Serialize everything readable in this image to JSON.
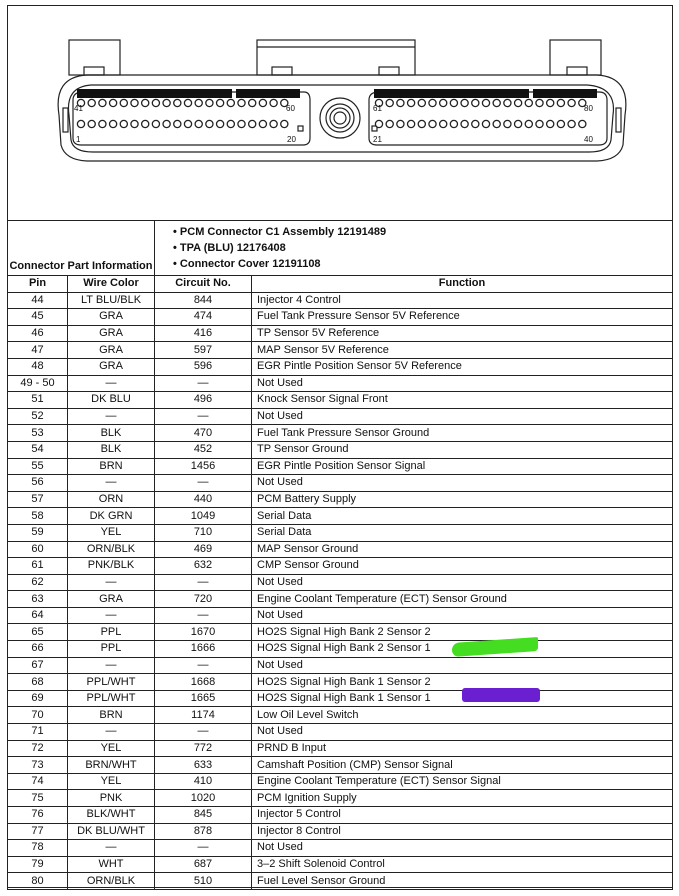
{
  "diagram": {
    "pin_labels": {
      "top_left_start": "41",
      "top_left_end": "60",
      "bottom_left_start": "1",
      "bottom_left_end": "20",
      "top_right_start": "61",
      "top_right_end": "80",
      "bottom_right_start": "21",
      "bottom_right_end": "40"
    }
  },
  "connector_info": {
    "label": "Connector Part Information",
    "items": [
      "PCM Connector C1 Assembly 12191489",
      "TPA (BLU) 12176408",
      "Connector Cover 12191108"
    ]
  },
  "headers": {
    "pin": "Pin",
    "wire": "Wire Color",
    "circuit": "Circuit No.",
    "function": "Function"
  },
  "rows": [
    {
      "pin": "44",
      "wire": "LT BLU/BLK",
      "circuit": "844",
      "function": "Injector 4 Control"
    },
    {
      "pin": "45",
      "wire": "GRA",
      "circuit": "474",
      "function": "Fuel Tank Pressure Sensor 5V Reference"
    },
    {
      "pin": "46",
      "wire": "GRA",
      "circuit": "416",
      "function": "TP Sensor 5V Reference"
    },
    {
      "pin": "47",
      "wire": "GRA",
      "circuit": "597",
      "function": "MAP Sensor 5V Reference"
    },
    {
      "pin": "48",
      "wire": "GRA",
      "circuit": "596",
      "function": "EGR Pintle Position Sensor 5V Reference"
    },
    {
      "pin": "49 - 50",
      "wire": "—",
      "circuit": "—",
      "function": "Not Used"
    },
    {
      "pin": "51",
      "wire": "DK BLU",
      "circuit": "496",
      "function": "Knock Sensor Signal Front"
    },
    {
      "pin": "52",
      "wire": "—",
      "circuit": "—",
      "function": "Not Used"
    },
    {
      "pin": "53",
      "wire": "BLK",
      "circuit": "470",
      "function": "Fuel Tank Pressure Sensor Ground"
    },
    {
      "pin": "54",
      "wire": "BLK",
      "circuit": "452",
      "function": "TP Sensor Ground"
    },
    {
      "pin": "55",
      "wire": "BRN",
      "circuit": "1456",
      "function": "EGR Pintle Position Sensor Signal"
    },
    {
      "pin": "56",
      "wire": "—",
      "circuit": "—",
      "function": "Not Used"
    },
    {
      "pin": "57",
      "wire": "ORN",
      "circuit": "440",
      "function": "PCM Battery Supply"
    },
    {
      "pin": "58",
      "wire": "DK GRN",
      "circuit": "1049",
      "function": "Serial Data"
    },
    {
      "pin": "59",
      "wire": "YEL",
      "circuit": "710",
      "function": "Serial Data"
    },
    {
      "pin": "60",
      "wire": "ORN/BLK",
      "circuit": "469",
      "function": "MAP Sensor Ground"
    },
    {
      "pin": "61",
      "wire": "PNK/BLK",
      "circuit": "632",
      "function": "CMP Sensor Ground"
    },
    {
      "pin": "62",
      "wire": "—",
      "circuit": "—",
      "function": "Not Used"
    },
    {
      "pin": "63",
      "wire": "GRA",
      "circuit": "720",
      "function": "Engine Coolant Temperature (ECT) Sensor Ground"
    },
    {
      "pin": "64",
      "wire": "—",
      "circuit": "—",
      "function": "Not Used"
    },
    {
      "pin": "65",
      "wire": "PPL",
      "circuit": "1670",
      "function": "HO2S Signal High Bank 2 Sensor 2"
    },
    {
      "pin": "66",
      "wire": "PPL",
      "circuit": "1666",
      "function": "HO2S Signal High Bank 2 Sensor 1"
    },
    {
      "pin": "67",
      "wire": "—",
      "circuit": "—",
      "function": "Not Used"
    },
    {
      "pin": "68",
      "wire": "PPL/WHT",
      "circuit": "1668",
      "function": "HO2S Signal High Bank 1 Sensor 2"
    },
    {
      "pin": "69",
      "wire": "PPL/WHT",
      "circuit": "1665",
      "function": "HO2S Signal High Bank 1 Sensor 1"
    },
    {
      "pin": "70",
      "wire": "BRN",
      "circuit": "1174",
      "function": "Low Oil Level Switch"
    },
    {
      "pin": "71",
      "wire": "—",
      "circuit": "—",
      "function": "Not Used"
    },
    {
      "pin": "72",
      "wire": "YEL",
      "circuit": "772",
      "function": "PRND B Input"
    },
    {
      "pin": "73",
      "wire": "BRN/WHT",
      "circuit": "633",
      "function": "Camshaft Position (CMP) Sensor Signal"
    },
    {
      "pin": "74",
      "wire": "YEL",
      "circuit": "410",
      "function": "Engine Coolant Temperature (ECT) Sensor Signal"
    },
    {
      "pin": "75",
      "wire": "PNK",
      "circuit": "1020",
      "function": "PCM Ignition Supply"
    },
    {
      "pin": "76",
      "wire": "BLK/WHT",
      "circuit": "845",
      "function": "Injector 5 Control"
    },
    {
      "pin": "77",
      "wire": "DK BLU/WHT",
      "circuit": "878",
      "function": "Injector 8 Control"
    },
    {
      "pin": "78",
      "wire": "—",
      "circuit": "—",
      "function": "Not Used"
    },
    {
      "pin": "79",
      "wire": "WHT",
      "circuit": "687",
      "function": "3–2 Shift Solenoid Control"
    },
    {
      "pin": "80",
      "wire": "ORN/BLK",
      "circuit": "510",
      "function": "Fuel Level Sensor Ground"
    }
  ],
  "highlights": {
    "green": "#44dd22",
    "purple": "#6a1fd0"
  }
}
